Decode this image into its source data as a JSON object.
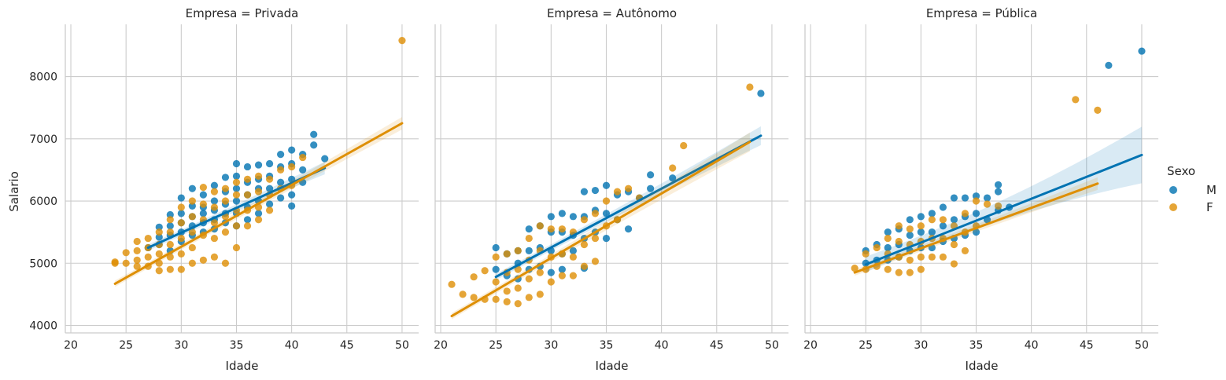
{
  "figure": {
    "ylabel": "Salario",
    "legend": {
      "title": "Sexo",
      "position": "right",
      "entries": [
        {
          "label": "M",
          "color": "#0173b2"
        },
        {
          "label": "F",
          "color": "#de8f05"
        }
      ]
    }
  },
  "chart_data": [
    {
      "type": "scatter",
      "title": "Empresa = Privada",
      "xlabel": "Idade",
      "ylabel": "Salario",
      "xlim": [
        19.5,
        51.5
      ],
      "ylim": [
        3880,
        8840
      ],
      "xticks": [
        20,
        25,
        30,
        35,
        40,
        45,
        50
      ],
      "yticks": [
        4000,
        5000,
        6000,
        7000,
        8000
      ],
      "grid": true,
      "series": [
        {
          "name": "M",
          "color": "#0173b2",
          "x": [
            27,
            28,
            28,
            28,
            29,
            29,
            29,
            29,
            30,
            30,
            30,
            30,
            30,
            31,
            31,
            31,
            31,
            31,
            32,
            32,
            32,
            32,
            32,
            33,
            33,
            33,
            33,
            33,
            34,
            34,
            34,
            34,
            34,
            35,
            35,
            35,
            35,
            35,
            35,
            36,
            36,
            36,
            36,
            36,
            37,
            37,
            37,
            37,
            37,
            38,
            38,
            38,
            38,
            39,
            39,
            39,
            39,
            40,
            40,
            40,
            40,
            40,
            41,
            41,
            41,
            42,
            42,
            43
          ],
          "y": [
            5250,
            5580,
            5420,
            5300,
            5780,
            5600,
            5450,
            5200,
            6050,
            5800,
            5650,
            5500,
            5350,
            6200,
            5920,
            5750,
            5600,
            5450,
            6100,
            5900,
            5800,
            5650,
            5500,
            6250,
            6000,
            5850,
            5700,
            5550,
            6380,
            6150,
            5950,
            5800,
            5650,
            6600,
            6400,
            6200,
            6000,
            5800,
            5600,
            6550,
            6300,
            6100,
            5900,
            5700,
            6580,
            6350,
            6200,
            6000,
            5800,
            6600,
            6400,
            6200,
            5950,
            6750,
            6550,
            6300,
            6050,
            6820,
            6600,
            6350,
            6100,
            5920,
            6750,
            6500,
            6300,
            7070,
            6900,
            6680
          ]
        },
        {
          "name": "F",
          "color": "#de8f05",
          "x": [
            24,
            24,
            25,
            25,
            26,
            26,
            26,
            26,
            27,
            27,
            27,
            27,
            28,
            28,
            28,
            28,
            28,
            29,
            29,
            29,
            29,
            29,
            30,
            30,
            30,
            30,
            30,
            31,
            31,
            31,
            31,
            31,
            32,
            32,
            32,
            32,
            32,
            33,
            33,
            33,
            33,
            33,
            34,
            34,
            34,
            34,
            34,
            35,
            35,
            35,
            35,
            35,
            36,
            36,
            36,
            36,
            37,
            37,
            37,
            37,
            38,
            38,
            38,
            39,
            39,
            40,
            40,
            41,
            50
          ],
          "y": [
            5000,
            5020,
            5170,
            5000,
            5350,
            5200,
            5050,
            4950,
            5400,
            5250,
            5100,
            4950,
            5500,
            5300,
            5150,
            5000,
            4880,
            5700,
            5500,
            5300,
            5100,
            4900,
            5900,
            5650,
            5400,
            5150,
            4900,
            6000,
            5750,
            5500,
            5250,
            5000,
            6220,
            5950,
            5700,
            5450,
            5050,
            6150,
            5900,
            5650,
            5400,
            5100,
            6200,
            6000,
            5750,
            5500,
            5000,
            6300,
            6100,
            5850,
            5600,
            5250,
            6350,
            6100,
            5850,
            5600,
            6400,
            6150,
            5900,
            5700,
            6350,
            6100,
            5850,
            6500,
            6200,
            6550,
            6250,
            6700,
            8580
          ]
        }
      ],
      "fit_lines": [
        {
          "name": "M",
          "x": [
            27,
            43
          ],
          "y": [
            5250,
            6530
          ]
        },
        {
          "name": "F",
          "x": [
            24,
            50
          ],
          "y": [
            4670,
            7250
          ]
        }
      ]
    },
    {
      "type": "scatter",
      "title": "Empresa = Autônomo",
      "xlabel": "Idade",
      "ylabel": "",
      "xlim": [
        19.5,
        51.5
      ],
      "ylim": [
        3880,
        8840
      ],
      "xticks": [
        20,
        25,
        30,
        35,
        40,
        45,
        50
      ],
      "yticks": [
        4000,
        5000,
        6000,
        7000,
        8000
      ],
      "grid": true,
      "series": [
        {
          "name": "M",
          "color": "#0173b2",
          "x": [
            25,
            25,
            26,
            26,
            27,
            27,
            27,
            28,
            28,
            28,
            29,
            29,
            29,
            30,
            30,
            30,
            30,
            31,
            31,
            31,
            31,
            32,
            32,
            32,
            33,
            33,
            33,
            33,
            34,
            34,
            34,
            35,
            35,
            35,
            36,
            36,
            37,
            37,
            38,
            39,
            39,
            41,
            49
          ],
          "y": [
            5250,
            4900,
            5150,
            4800,
            5200,
            5000,
            4750,
            5550,
            5200,
            4900,
            5600,
            5250,
            4950,
            5750,
            5500,
            5200,
            4850,
            5800,
            5500,
            5150,
            4900,
            5750,
            5450,
            5200,
            6150,
            5750,
            5400,
            4920,
            6170,
            5850,
            5500,
            6250,
            5800,
            5400,
            6100,
            5700,
            6150,
            5550,
            6050,
            6420,
            6200,
            6370,
            7730
          ]
        },
        {
          "name": "F",
          "color": "#de8f05",
          "x": [
            21,
            22,
            23,
            23,
            24,
            24,
            25,
            25,
            25,
            26,
            26,
            26,
            26,
            27,
            27,
            27,
            27,
            28,
            28,
            28,
            28,
            29,
            29,
            29,
            29,
            30,
            30,
            30,
            31,
            31,
            31,
            32,
            32,
            32,
            33,
            33,
            33,
            34,
            34,
            34,
            35,
            35,
            36,
            36,
            37,
            38,
            41,
            42,
            48
          ],
          "y": [
            4660,
            4500,
            4780,
            4450,
            4880,
            4420,
            5100,
            4700,
            4420,
            5150,
            4850,
            4550,
            4380,
            5200,
            4900,
            4600,
            4350,
            5400,
            5050,
            4750,
            4450,
            5600,
            5200,
            4850,
            4500,
            5550,
            5100,
            4700,
            5550,
            5150,
            4800,
            5500,
            5100,
            4800,
            5700,
            5300,
            4950,
            5800,
            5400,
            5030,
            6000,
            5600,
            6150,
            5700,
            6200,
            6050,
            6530,
            6890,
            7830
          ]
        }
      ],
      "fit_lines": [
        {
          "name": "M",
          "x": [
            25,
            49
          ],
          "y": [
            4780,
            7050
          ]
        },
        {
          "name": "F",
          "x": [
            21,
            48
          ],
          "y": [
            4150,
            6950
          ]
        }
      ]
    },
    {
      "type": "scatter",
      "title": "Empresa = Pública",
      "xlabel": "Idade",
      "ylabel": "",
      "xlim": [
        19.5,
        51.5
      ],
      "ylim": [
        3880,
        8840
      ],
      "xticks": [
        20,
        25,
        30,
        35,
        40,
        45,
        50
      ],
      "yticks": [
        4000,
        5000,
        6000,
        7000,
        8000
      ],
      "grid": true,
      "series": [
        {
          "name": "M",
          "color": "#0173b2",
          "x": [
            25,
            25,
            26,
            26,
            27,
            27,
            27,
            28,
            28,
            28,
            29,
            29,
            29,
            30,
            30,
            30,
            31,
            31,
            31,
            32,
            32,
            32,
            33,
            33,
            33,
            34,
            34,
            34,
            35,
            35,
            35,
            36,
            36,
            37,
            37,
            37,
            38,
            47,
            50
          ],
          "y": [
            5200,
            5000,
            5300,
            5050,
            5500,
            5250,
            5050,
            5550,
            5300,
            5100,
            5700,
            5450,
            5200,
            5750,
            5500,
            5250,
            5800,
            5500,
            5250,
            5900,
            5600,
            5350,
            6050,
            5700,
            5400,
            6050,
            5750,
            5450,
            6080,
            5800,
            5500,
            6050,
            5700,
            6260,
            6150,
            5850,
            5900,
            8180,
            8410
          ]
        },
        {
          "name": "F",
          "color": "#de8f05",
          "x": [
            24,
            25,
            25,
            26,
            26,
            27,
            27,
            27,
            28,
            28,
            28,
            28,
            29,
            29,
            29,
            29,
            30,
            30,
            30,
            30,
            31,
            31,
            31,
            32,
            32,
            32,
            33,
            33,
            33,
            34,
            34,
            34,
            35,
            35,
            36,
            37,
            44,
            46
          ],
          "y": [
            4920,
            5150,
            4900,
            5250,
            4950,
            5400,
            5150,
            4900,
            5600,
            5350,
            5100,
            4850,
            5550,
            5300,
            5050,
            4850,
            5600,
            5350,
            5100,
            4900,
            5700,
            5400,
            5100,
            5700,
            5400,
            5100,
            5600,
            5300,
            4990,
            5800,
            5500,
            5200,
            6000,
            5600,
            5950,
            5920,
            7630,
            7460
          ]
        }
      ],
      "fit_lines": [
        {
          "name": "M",
          "x": [
            25,
            50
          ],
          "y": [
            4980,
            6740
          ]
        },
        {
          "name": "F",
          "x": [
            24,
            46
          ],
          "y": [
            4850,
            6280
          ]
        }
      ]
    }
  ]
}
